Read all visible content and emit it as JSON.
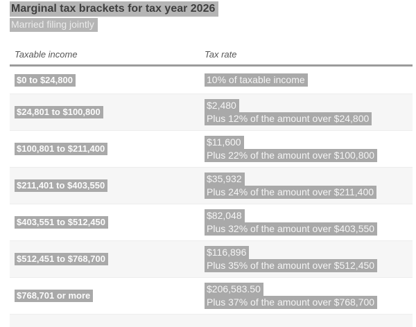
{
  "page": {
    "title": "Marginal tax brackets for tax year 2026",
    "subtitle": "Married filing jointly"
  },
  "table": {
    "columns": [
      "Taxable income",
      "Tax rate"
    ],
    "rows": [
      {
        "income": "$0 to $24,800",
        "rate_lines": [
          "10% of taxable income"
        ]
      },
      {
        "income": "$24,801 to $100,800",
        "rate_lines": [
          "$2,480",
          "Plus 12% of the amount over $24,800"
        ]
      },
      {
        "income": "$100,801 to $211,400",
        "rate_lines": [
          "$11,600",
          "Plus 22% of the amount over $100,800"
        ]
      },
      {
        "income": "$211,401 to $403,550",
        "rate_lines": [
          "$35,932",
          "Plus 24% of the amount over $211,400"
        ]
      },
      {
        "income": "$403,551 to $512,450",
        "rate_lines": [
          "$82,048",
          "Plus 32% of the amount over $403,550"
        ]
      },
      {
        "income": "$512,451 to $768,700",
        "rate_lines": [
          "$116,896",
          "Plus 35% of the amount over $512,450"
        ]
      },
      {
        "income": "$768,701 or more",
        "rate_lines": [
          "$206,583.50",
          "Plus 37% of the amount over $768,700"
        ]
      }
    ]
  },
  "colors": {
    "highlight_header": "#b5b5b5",
    "highlight_cell": "#a9a9a9",
    "highlight_text": "#f5f5f5",
    "title_text": "#3e3e3e",
    "row_stripe": "#f6f6f6",
    "divider": "#9b9b9b"
  }
}
